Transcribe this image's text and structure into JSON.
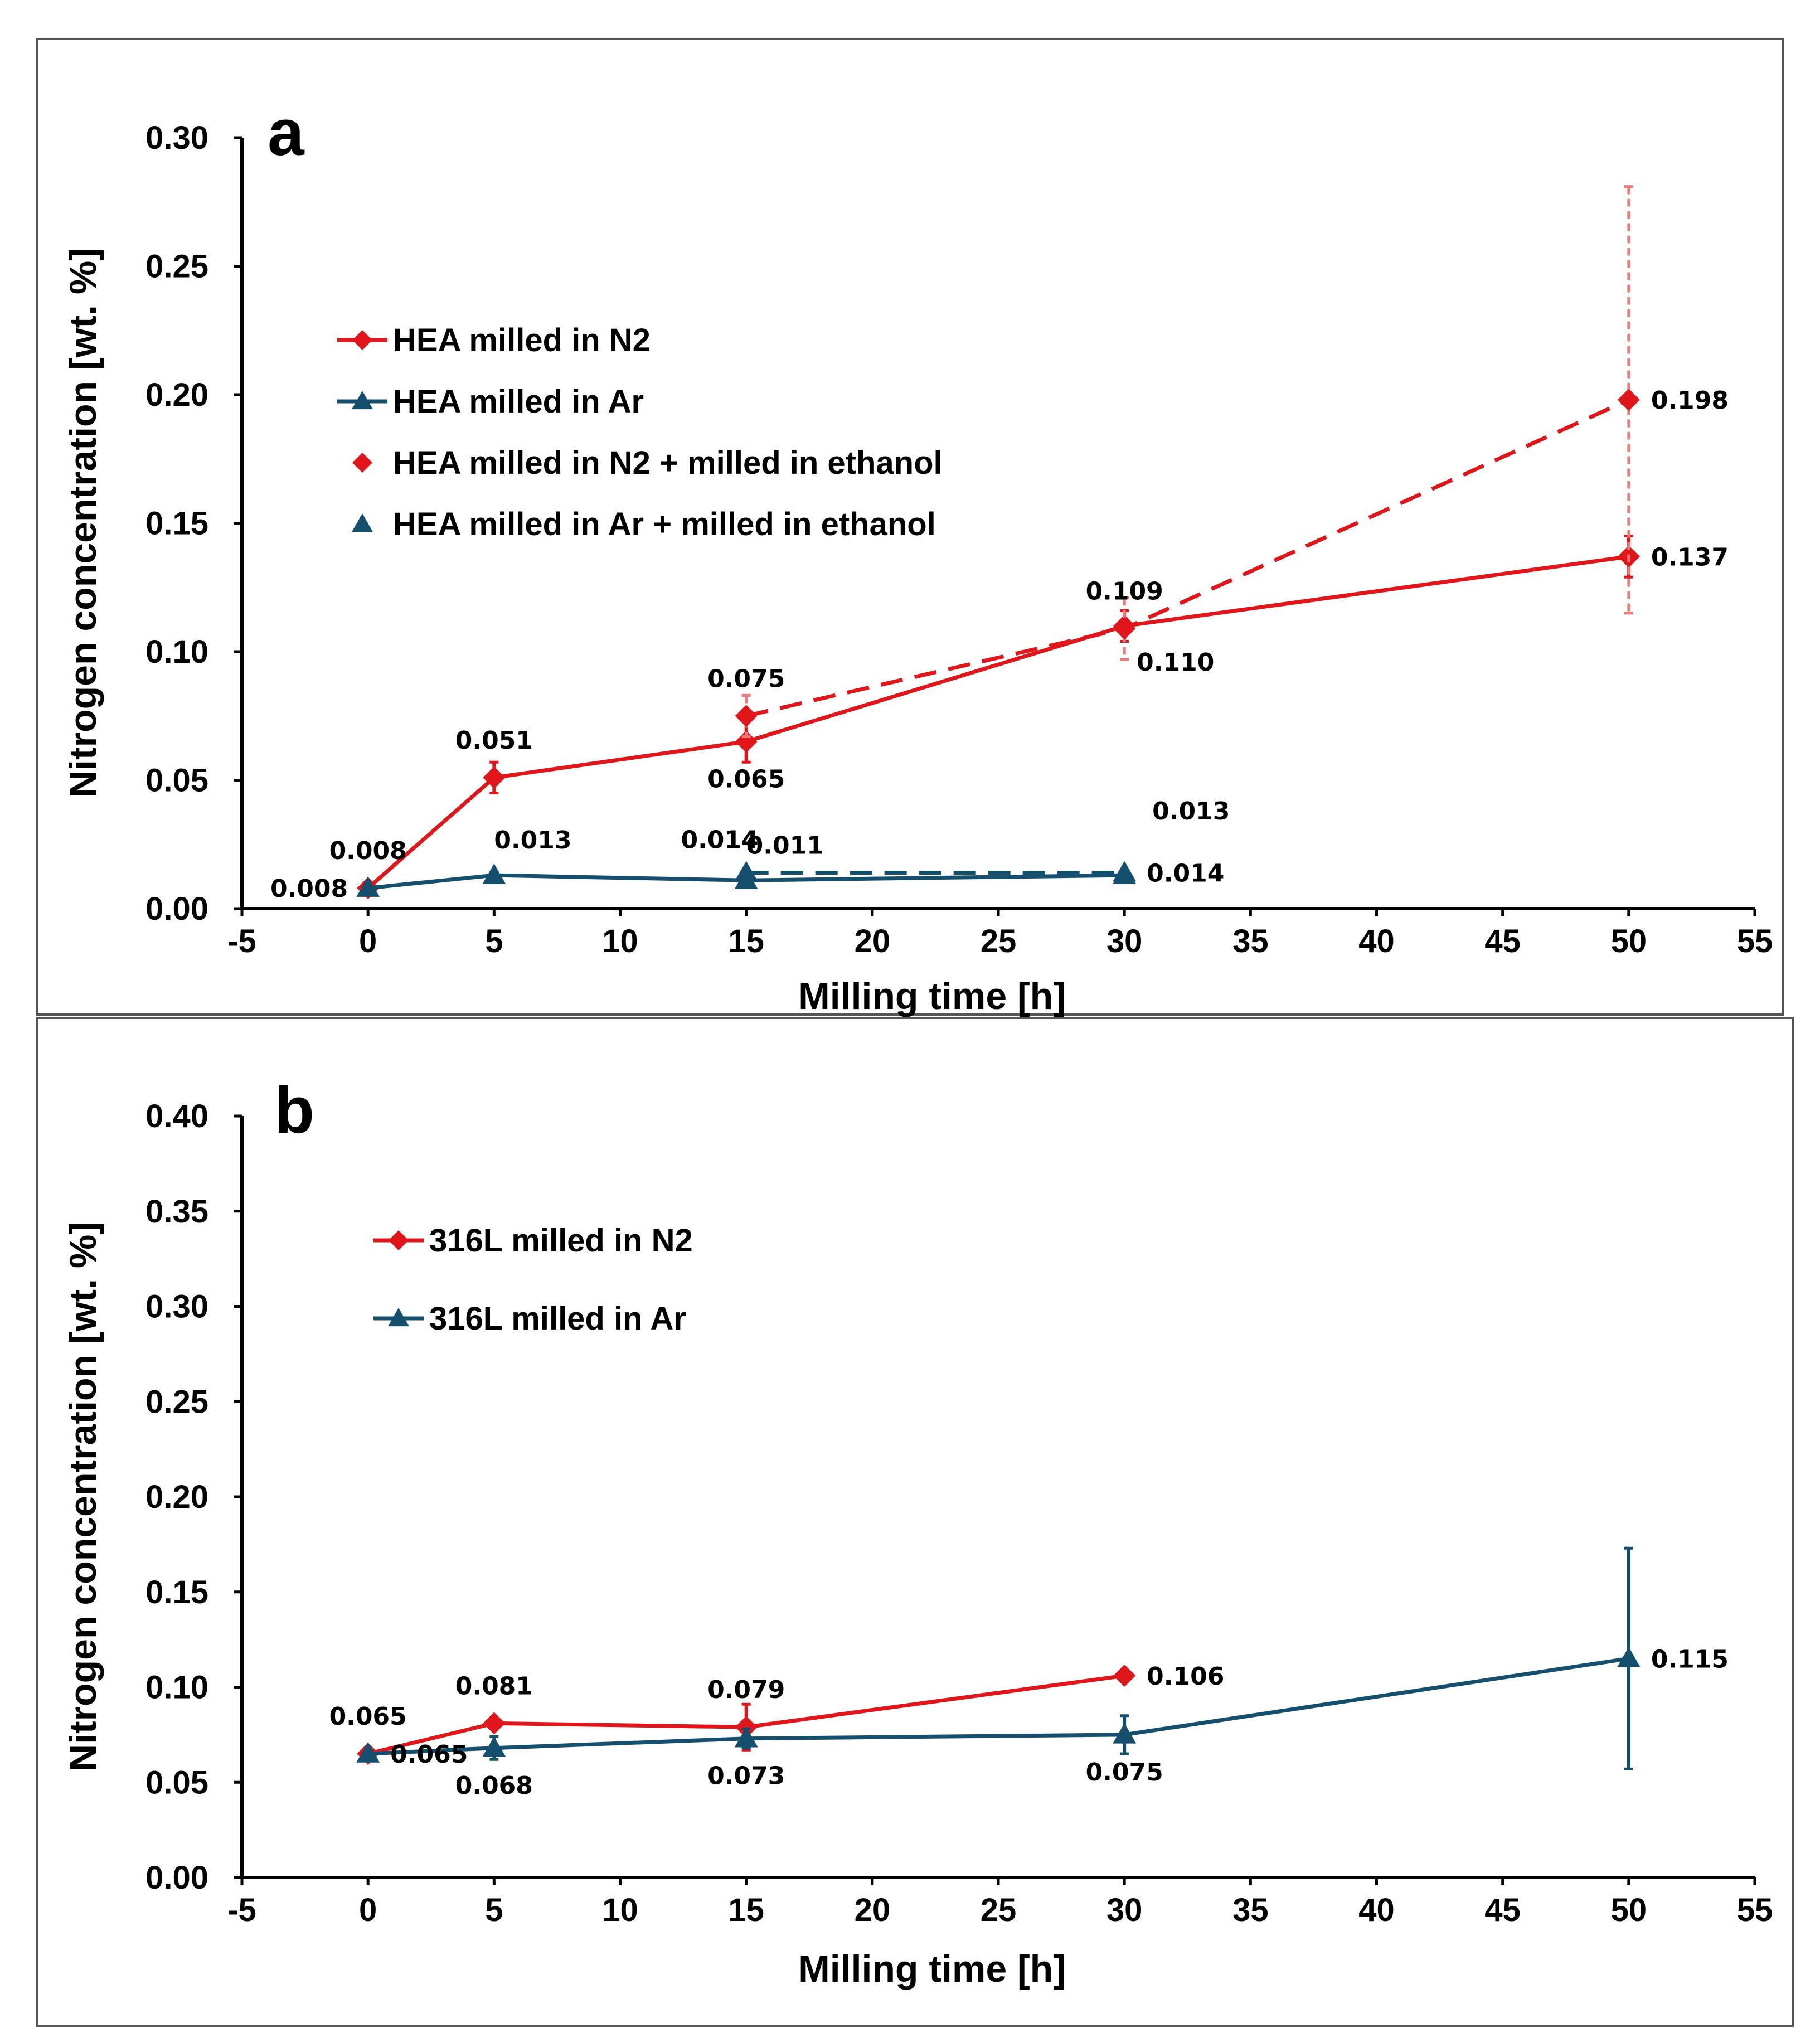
{
  "chart_data": [
    {
      "type": "line",
      "panel_label": "a",
      "xlabel": "Milling time [h]",
      "ylabel": "Nitrogen concentration [wt. %]",
      "xlim": [
        -5,
        55
      ],
      "ylim": [
        0,
        0.3
      ],
      "xticks": [
        "-5",
        "0",
        "5",
        "10",
        "15",
        "20",
        "25",
        "30",
        "35",
        "40",
        "45",
        "50",
        "55"
      ],
      "yticks": [
        "0.00",
        "0.05",
        "0.10",
        "0.15",
        "0.20",
        "0.25",
        "0.30"
      ],
      "legend_position": "upper-left",
      "series": [
        {
          "name": "HEA milled in N2",
          "color": "#e0161b",
          "marker": "diamond",
          "dash": "solid",
          "x": [
            0,
            5,
            15,
            30,
            50
          ],
          "y": [
            0.008,
            0.051,
            0.065,
            0.11,
            0.137
          ],
          "err": [
            0,
            0.006,
            0.008,
            0.006,
            0.008
          ],
          "labels": [
            "0.008",
            "0.051",
            "0.065",
            "0.110",
            "0.137"
          ],
          "label_pos": [
            "above",
            "above",
            "below",
            "below-right",
            "right"
          ]
        },
        {
          "name": "HEA milled in Ar",
          "color": "#14506e",
          "marker": "triangle",
          "dash": "solid",
          "x": [
            0,
            5,
            15,
            30
          ],
          "y": [
            0.008,
            0.013,
            0.011,
            0.013
          ],
          "err": [
            0,
            0,
            0,
            0
          ],
          "labels": [
            "0.008",
            "0.013",
            "0.011",
            "0.013"
          ],
          "label_pos": [
            "left",
            "above-right",
            "above-right",
            "above-right-far"
          ]
        },
        {
          "name": "HEA milled in N2 + milled in ethanol",
          "color": "#e0161b",
          "marker": "diamond",
          "dash": "dashed",
          "x": [
            15,
            30,
            50
          ],
          "y": [
            0.075,
            0.109,
            0.198
          ],
          "err": [
            0.008,
            0.012,
            0.083
          ],
          "labels": [
            "0.075",
            "0.109",
            "0.198"
          ],
          "label_pos": [
            "above",
            "above",
            "right"
          ]
        },
        {
          "name": "HEA milled in Ar + milled in ethanol",
          "color": "#14506e",
          "marker": "triangle",
          "dash": "dashed",
          "x": [
            15,
            30
          ],
          "y": [
            0.014,
            0.014
          ],
          "err": [
            0,
            0
          ],
          "labels": [
            "0.014",
            "0.014"
          ],
          "label_pos": [
            "above-left",
            "right"
          ]
        }
      ]
    },
    {
      "type": "line",
      "panel_label": "b",
      "xlabel": "Milling time [h]",
      "ylabel": "Nitrogen concentration [wt. %]",
      "xlim": [
        -5,
        55
      ],
      "ylim": [
        0,
        0.4
      ],
      "xticks": [
        "-5",
        "0",
        "5",
        "10",
        "15",
        "20",
        "25",
        "30",
        "35",
        "40",
        "45",
        "50",
        "55"
      ],
      "yticks": [
        "0.00",
        "0.05",
        "0.10",
        "0.15",
        "0.20",
        "0.25",
        "0.30",
        "0.35",
        "0.40"
      ],
      "legend_position": "upper-left",
      "series": [
        {
          "name": "316L milled in N2",
          "color": "#e0161b",
          "marker": "diamond",
          "dash": "solid",
          "x": [
            0,
            5,
            15,
            30
          ],
          "y": [
            0.065,
            0.081,
            0.079,
            0.106
          ],
          "err": [
            0,
            0,
            0.012,
            0
          ],
          "labels": [
            "0.065",
            "0.081",
            "0.079",
            "0.106"
          ],
          "label_pos": [
            "above",
            "above",
            "above",
            "right"
          ]
        },
        {
          "name": "316L milled in Ar",
          "color": "#14506e",
          "marker": "triangle",
          "dash": "solid",
          "x": [
            0,
            5,
            15,
            30,
            50
          ],
          "y": [
            0.065,
            0.068,
            0.073,
            0.075,
            0.115
          ],
          "err": [
            0,
            0.006,
            0.005,
            0.01,
            0.058
          ],
          "labels": [
            "0.065",
            "0.068",
            "0.073",
            "0.075",
            "0.115"
          ],
          "label_pos": [
            "right",
            "below",
            "below",
            "below",
            "right"
          ]
        }
      ]
    }
  ]
}
